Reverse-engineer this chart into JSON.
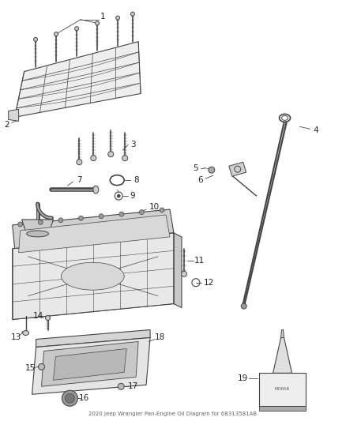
{
  "title": "2020 Jeep Wrangler Pan-Engine Oil Diagram for 68313581AB",
  "background_color": "#ffffff",
  "fig_width": 4.38,
  "fig_height": 5.33,
  "dpi": 100,
  "line_color": "#444444",
  "label_fontsize": 7.5
}
